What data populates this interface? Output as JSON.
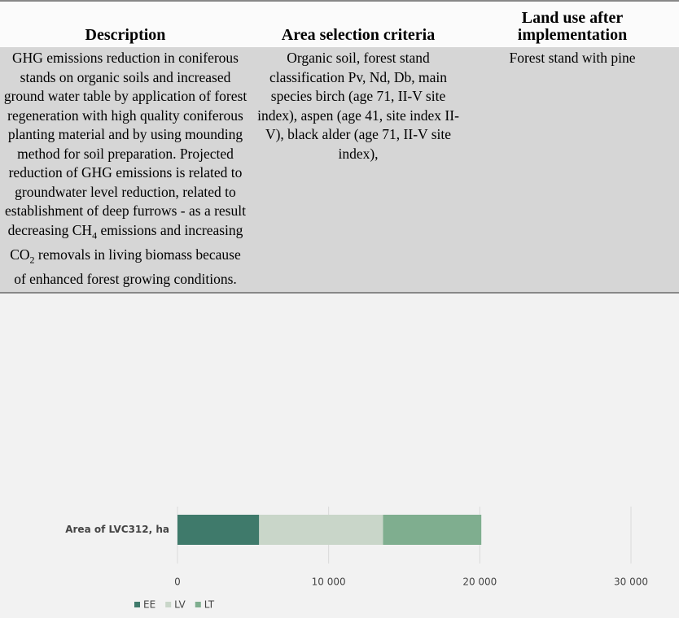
{
  "table": {
    "headers": [
      "Description",
      "Area selection criteria",
      "Land use after implementation"
    ],
    "rows": [
      [
        [
          "GHG emissions reduction in coniferous stands on organic soils and increased ground water table by application of forest regeneration with high quality coniferous planting material and by using mounding method for soil preparation. Projected reduction of GHG emissions is related to groundwater level reduction, related to establishment of deep furrows - as a result decreasing CH",
          "4",
          " emissions and increasing CO",
          "2",
          " removals in living biomass because of enhanced forest growing conditions."
        ],
        "Organic soil, forest stand classification Pv, Nd, Db, main species birch (age 71, II-V site index), aspen (age 41, site index II-V), black alder (age 71, II-V site index),",
        "Forest stand with pine"
      ]
    ]
  },
  "chart_data": {
    "type": "stacked-barh",
    "categories": [
      "Area of LVC312, ha"
    ],
    "series": [
      {
        "name": "EE",
        "color": "#3f7a6b",
        "values": [
          5400
        ]
      },
      {
        "name": "LV",
        "color": "#c9d6c9",
        "values": [
          8200
        ]
      },
      {
        "name": "LT",
        "color": "#7fae8f",
        "values": [
          6500
        ]
      }
    ],
    "xlim": [
      0,
      30000
    ],
    "xticks": [
      0,
      {
        "value": 10000,
        "label": "10 000"
      },
      {
        "value": 20000,
        "label": "20 000"
      },
      {
        "value": 30000,
        "label": "30 000"
      }
    ],
    "grid": true,
    "legend": "bottom"
  }
}
